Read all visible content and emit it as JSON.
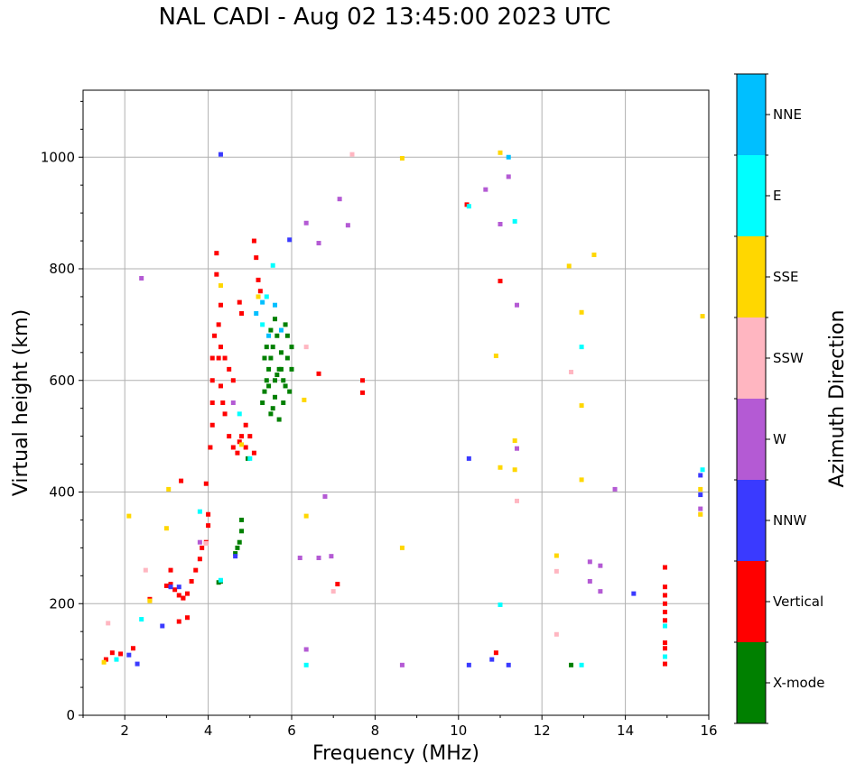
{
  "chart_data": {
    "type": "scatter",
    "title": "NAL CADI - Aug 02 13:45:00 2023 UTC",
    "xlabel": "Frequency (MHz)",
    "ylabel": "Virtual height (km)",
    "xlim": [
      1,
      16
    ],
    "ylim": [
      0,
      1120
    ],
    "xticks": [
      2,
      4,
      6,
      8,
      10,
      12,
      14,
      16
    ],
    "yticks": [
      0,
      200,
      400,
      600,
      800,
      1000
    ],
    "grid": true,
    "colorbar": {
      "label": "Azimuth Direction",
      "categories": [
        "X-mode",
        "Vertical",
        "NNW",
        "W",
        "SSW",
        "SSE",
        "E",
        "NNE"
      ],
      "colors": [
        "#008000",
        "#ff0000",
        "#3a3aff",
        "#b45ad4",
        "#ffb6c1",
        "#ffd700",
        "#00ffff",
        "#00bfff"
      ]
    },
    "series": [
      {
        "name": "X-mode",
        "points": [
          [
            4.25,
            238
          ],
          [
            4.3,
            240
          ],
          [
            4.65,
            290
          ],
          [
            4.7,
            300
          ],
          [
            4.75,
            310
          ],
          [
            4.8,
            330
          ],
          [
            4.8,
            350
          ],
          [
            4.95,
            460
          ],
          [
            5.3,
            560
          ],
          [
            5.35,
            580
          ],
          [
            5.4,
            600
          ],
          [
            5.45,
            620
          ],
          [
            5.5,
            540
          ],
          [
            5.5,
            640
          ],
          [
            5.55,
            660
          ],
          [
            5.6,
            600
          ],
          [
            5.6,
            570
          ],
          [
            5.65,
            680
          ],
          [
            5.7,
            620
          ],
          [
            5.7,
            530
          ],
          [
            5.75,
            650
          ],
          [
            5.8,
            600
          ],
          [
            5.8,
            560
          ],
          [
            5.85,
            700
          ],
          [
            5.9,
            640
          ],
          [
            5.95,
            580
          ],
          [
            6.0,
            660
          ],
          [
            6.0,
            620
          ],
          [
            5.4,
            660
          ],
          [
            5.5,
            690
          ],
          [
            5.6,
            710
          ],
          [
            5.75,
            620
          ],
          [
            5.9,
            680
          ],
          [
            5.35,
            640
          ],
          [
            5.45,
            590
          ],
          [
            5.55,
            550
          ],
          [
            5.65,
            610
          ],
          [
            5.85,
            590
          ],
          [
            12.7,
            90
          ]
        ]
      },
      {
        "name": "Vertical",
        "points": [
          [
            1.55,
            100
          ],
          [
            1.7,
            112
          ],
          [
            1.9,
            110
          ],
          [
            2.2,
            120
          ],
          [
            2.6,
            208
          ],
          [
            3.1,
            235
          ],
          [
            3.2,
            225
          ],
          [
            3.3,
            215
          ],
          [
            3.4,
            210
          ],
          [
            3.5,
            218
          ],
          [
            3.6,
            240
          ],
          [
            3.7,
            260
          ],
          [
            3.8,
            280
          ],
          [
            3.85,
            300
          ],
          [
            3.95,
            310
          ],
          [
            4.0,
            340
          ],
          [
            4.0,
            360
          ],
          [
            3.95,
            415
          ],
          [
            4.05,
            480
          ],
          [
            4.1,
            520
          ],
          [
            4.1,
            560
          ],
          [
            4.1,
            600
          ],
          [
            4.1,
            640
          ],
          [
            4.15,
            680
          ],
          [
            4.25,
            700
          ],
          [
            4.25,
            640
          ],
          [
            4.3,
            590
          ],
          [
            4.35,
            560
          ],
          [
            4.4,
            540
          ],
          [
            4.5,
            500
          ],
          [
            4.6,
            480
          ],
          [
            4.7,
            470
          ],
          [
            4.75,
            490
          ],
          [
            4.8,
            500
          ],
          [
            4.9,
            480
          ],
          [
            4.4,
            640
          ],
          [
            4.5,
            620
          ],
          [
            4.6,
            600
          ],
          [
            4.3,
            660
          ],
          [
            4.2,
            790
          ],
          [
            4.2,
            828
          ],
          [
            4.3,
            735
          ],
          [
            4.75,
            740
          ],
          [
            4.8,
            720
          ],
          [
            5.1,
            850
          ],
          [
            5.15,
            820
          ],
          [
            5.2,
            780
          ],
          [
            5.25,
            760
          ],
          [
            4.9,
            520
          ],
          [
            5.0,
            500
          ],
          [
            5.1,
            470
          ],
          [
            3.35,
            420
          ],
          [
            3.4,
            210
          ],
          [
            3.5,
            175
          ],
          [
            3.3,
            168
          ],
          [
            3.0,
            232
          ],
          [
            3.1,
            260
          ],
          [
            7.7,
            600
          ],
          [
            7.7,
            578
          ],
          [
            7.1,
            235
          ],
          [
            10.2,
            915
          ],
          [
            10.9,
            112
          ],
          [
            11.0,
            778
          ],
          [
            14.95,
            265
          ],
          [
            14.95,
            230
          ],
          [
            14.95,
            215
          ],
          [
            14.95,
            200
          ],
          [
            14.95,
            185
          ],
          [
            14.95,
            170
          ],
          [
            14.95,
            130
          ],
          [
            14.95,
            120
          ],
          [
            14.95,
            92
          ],
          [
            6.65,
            612
          ]
        ]
      },
      {
        "name": "NNW",
        "points": [
          [
            4.3,
            1005
          ],
          [
            2.1,
            108
          ],
          [
            2.3,
            92
          ],
          [
            2.9,
            160
          ],
          [
            3.1,
            230
          ],
          [
            3.3,
            230
          ],
          [
            4.65,
            285
          ],
          [
            5.95,
            852
          ],
          [
            10.25,
            460
          ],
          [
            10.25,
            90
          ],
          [
            10.8,
            100
          ],
          [
            11.2,
            90
          ],
          [
            14.2,
            218
          ],
          [
            15.8,
            430
          ],
          [
            15.8,
            395
          ]
        ]
      },
      {
        "name": "W",
        "points": [
          [
            2.4,
            783
          ],
          [
            3.8,
            310
          ],
          [
            4.6,
            560
          ],
          [
            6.2,
            282
          ],
          [
            6.35,
            882
          ],
          [
            6.35,
            118
          ],
          [
            6.65,
            282
          ],
          [
            6.65,
            846
          ],
          [
            6.8,
            392
          ],
          [
            6.95,
            285
          ],
          [
            7.15,
            925
          ],
          [
            7.35,
            878
          ],
          [
            8.65,
            90
          ],
          [
            10.65,
            942
          ],
          [
            11.0,
            880
          ],
          [
            11.2,
            965
          ],
          [
            11.4,
            735
          ],
          [
            11.4,
            478
          ],
          [
            13.15,
            275
          ],
          [
            13.15,
            240
          ],
          [
            13.4,
            222
          ],
          [
            13.4,
            268
          ],
          [
            13.75,
            405
          ],
          [
            15.8,
            370
          ]
        ]
      },
      {
        "name": "SSW",
        "points": [
          [
            1.6,
            165
          ],
          [
            2.5,
            260
          ],
          [
            3.95,
            308
          ],
          [
            6.35,
            660
          ],
          [
            7.0,
            222
          ],
          [
            7.45,
            1005
          ],
          [
            11.4,
            384
          ],
          [
            12.35,
            258
          ],
          [
            12.35,
            145
          ],
          [
            12.7,
            615
          ],
          [
            15.8,
            360
          ]
        ]
      },
      {
        "name": "SSE",
        "points": [
          [
            1.5,
            95
          ],
          [
            2.1,
            357
          ],
          [
            2.6,
            205
          ],
          [
            3.0,
            335
          ],
          [
            3.05,
            405
          ],
          [
            4.3,
            770
          ],
          [
            4.8,
            485
          ],
          [
            5.2,
            750
          ],
          [
            6.3,
            565
          ],
          [
            6.35,
            357
          ],
          [
            8.65,
            998
          ],
          [
            8.65,
            300
          ],
          [
            10.9,
            644
          ],
          [
            11.0,
            1008
          ],
          [
            11.0,
            444
          ],
          [
            11.35,
            492
          ],
          [
            11.35,
            440
          ],
          [
            12.35,
            286
          ],
          [
            12.65,
            805
          ],
          [
            12.95,
            722
          ],
          [
            12.95,
            555
          ],
          [
            12.95,
            422
          ],
          [
            13.25,
            825
          ],
          [
            15.85,
            715
          ],
          [
            15.8,
            405
          ],
          [
            15.8,
            360
          ]
        ]
      },
      {
        "name": "E",
        "points": [
          [
            1.8,
            100
          ],
          [
            2.4,
            172
          ],
          [
            3.8,
            365
          ],
          [
            4.3,
            242
          ],
          [
            4.75,
            540
          ],
          [
            5.0,
            460
          ],
          [
            5.3,
            700
          ],
          [
            5.4,
            750
          ],
          [
            5.55,
            806
          ],
          [
            6.35,
            90
          ],
          [
            10.25,
            912
          ],
          [
            11.0,
            198
          ],
          [
            11.35,
            885
          ],
          [
            12.95,
            660
          ],
          [
            12.95,
            90
          ],
          [
            14.95,
            160
          ],
          [
            14.95,
            105
          ],
          [
            15.85,
            440
          ]
        ]
      },
      {
        "name": "NNE",
        "points": [
          [
            5.45,
            680
          ],
          [
            5.6,
            735
          ],
          [
            5.75,
            690
          ],
          [
            5.15,
            720
          ],
          [
            5.3,
            740
          ],
          [
            11.2,
            1000
          ]
        ]
      }
    ]
  }
}
